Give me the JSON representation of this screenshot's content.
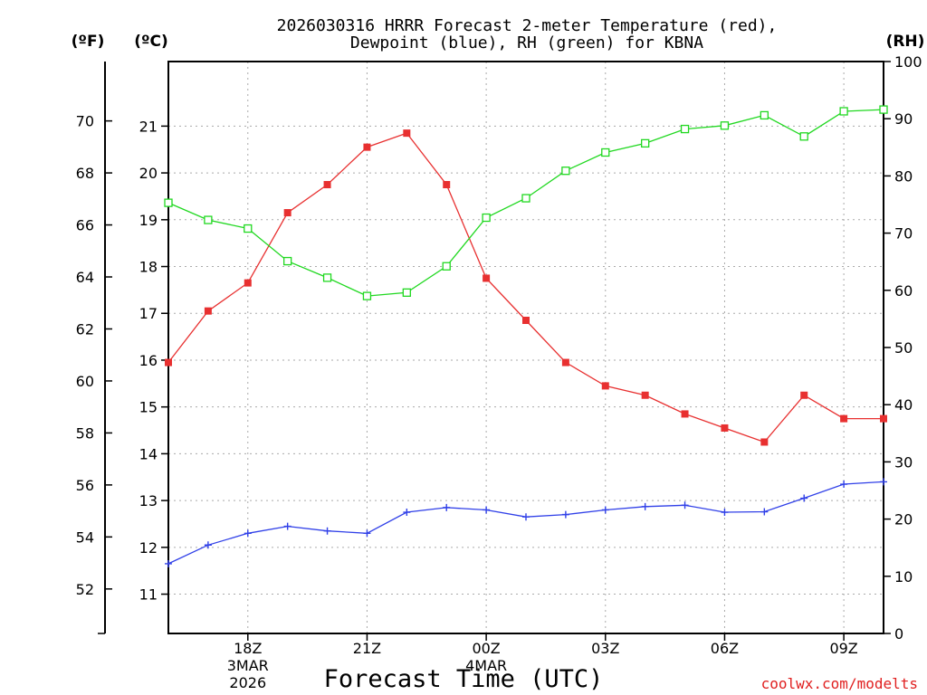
{
  "chart_data": {
    "type": "line",
    "title_line1": "2026030316 HRRR Forecast 2-meter Temperature (red),",
    "title_line2": "Dewpoint (blue), RH (green) for KBNA",
    "xlabel": "Forecast Time (UTC)",
    "credit": "coolwx.com/modelts",
    "axes": {
      "fahrenheit": {
        "label": "(ºF)",
        "ticks": [
          52,
          54,
          56,
          58,
          60,
          62,
          64,
          66,
          68,
          70
        ],
        "ylim": [
          50.288,
          72.284
        ]
      },
      "celsius": {
        "label": "(ºC)",
        "ticks": [
          11,
          12,
          13,
          14,
          15,
          16,
          17,
          18,
          19,
          20,
          21
        ],
        "ylim": [
          10.16,
          22.38
        ]
      },
      "rh": {
        "label": "(RH)",
        "ticks": [
          0,
          10,
          20,
          30,
          40,
          50,
          60,
          70,
          80,
          90,
          100
        ],
        "ylim": [
          0,
          100
        ]
      }
    },
    "x": {
      "unit": "forecast hour",
      "range": [
        0,
        18
      ],
      "ticks": [
        {
          "hour": 2,
          "label": "18Z",
          "sub": [
            "3MAR",
            "2026"
          ]
        },
        {
          "hour": 5,
          "label": "21Z",
          "sub": []
        },
        {
          "hour": 8,
          "label": "00Z",
          "sub": [
            "4MAR"
          ]
        },
        {
          "hour": 11,
          "label": "03Z",
          "sub": []
        },
        {
          "hour": 14,
          "label": "06Z",
          "sub": []
        },
        {
          "hour": 17,
          "label": "09Z",
          "sub": []
        }
      ]
    },
    "series": [
      {
        "name": "2-meter Temperature",
        "units": "C",
        "color": "#e83030",
        "marker": "filled-square",
        "x": [
          0,
          1,
          2,
          3,
          4,
          5,
          6,
          7,
          8,
          9,
          10,
          11,
          12,
          13,
          14,
          15,
          16,
          17,
          18
        ],
        "values": [
          15.95,
          17.05,
          17.65,
          19.15,
          19.75,
          20.55,
          20.85,
          19.75,
          17.75,
          16.85,
          15.95,
          15.45,
          15.25,
          14.85,
          14.55,
          14.25,
          15.25,
          14.75,
          14.75
        ]
      },
      {
        "name": "Dewpoint",
        "units": "C",
        "color": "#3040e8",
        "marker": "plus",
        "x": [
          0,
          1,
          2,
          3,
          4,
          5,
          6,
          7,
          8,
          9,
          10,
          11,
          12,
          13,
          14,
          15,
          16,
          17,
          18
        ],
        "values": [
          11.65,
          12.05,
          12.3,
          12.45,
          12.35,
          12.3,
          12.75,
          12.85,
          12.8,
          12.65,
          12.7,
          12.8,
          12.87,
          12.9,
          12.75,
          12.76,
          13.05,
          13.35,
          13.4
        ]
      },
      {
        "name": "RH",
        "units": "%",
        "color": "#20d820",
        "marker": "open-square",
        "x": [
          0,
          1,
          2,
          3,
          4,
          5,
          6,
          7,
          8,
          9,
          10,
          11,
          12,
          13,
          14,
          15,
          16,
          17,
          18
        ],
        "values": [
          75.3,
          72.3,
          70.8,
          65.1,
          62.2,
          59.0,
          59.6,
          64.2,
          72.7,
          76.1,
          80.9,
          84.1,
          85.7,
          88.2,
          88.8,
          90.6,
          86.9,
          91.3,
          91.6
        ]
      }
    ]
  }
}
